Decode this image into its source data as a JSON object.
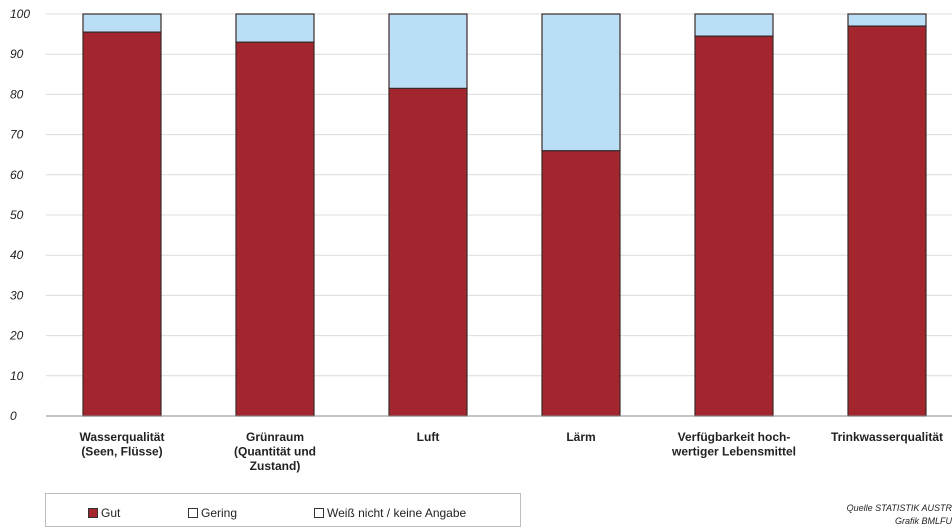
{
  "chart_data": {
    "type": "bar",
    "stacked": true,
    "categories": [
      [
        "Wasserqualität",
        "(Seen, Flüsse)"
      ],
      [
        "Grünraum",
        "(Quantität und",
        "Zustand)"
      ],
      [
        "Luft"
      ],
      [
        "Lärm"
      ],
      [
        "Verfügbarkeit hoch-",
        "wertiger Lebensmittel"
      ],
      [
        "Trinkwasserqualität"
      ]
    ],
    "series": [
      {
        "name": "Gut",
        "color": "#a3262e",
        "values": [
          95.5,
          93,
          81.5,
          66,
          94.5,
          97
        ]
      },
      {
        "name": "Gering",
        "color": "#b9def5",
        "values": [
          4.5,
          7,
          18.5,
          34,
          5.5,
          3
        ]
      },
      {
        "name": "Weiß nicht / keine Angabe",
        "color": "#ffffff",
        "values": [
          0,
          0,
          0,
          0,
          0,
          0
        ]
      }
    ],
    "ylim": [
      0,
      100
    ],
    "yticks": [
      "0",
      "10",
      "20",
      "30",
      "40",
      "50",
      "60",
      "70",
      "80",
      "90",
      "100"
    ],
    "grid": true,
    "legend_position": "bottom-left"
  },
  "source": {
    "line1": "Quelle  STATISTIK AUSTR",
    "line2": "Grafik  BMLFU"
  }
}
